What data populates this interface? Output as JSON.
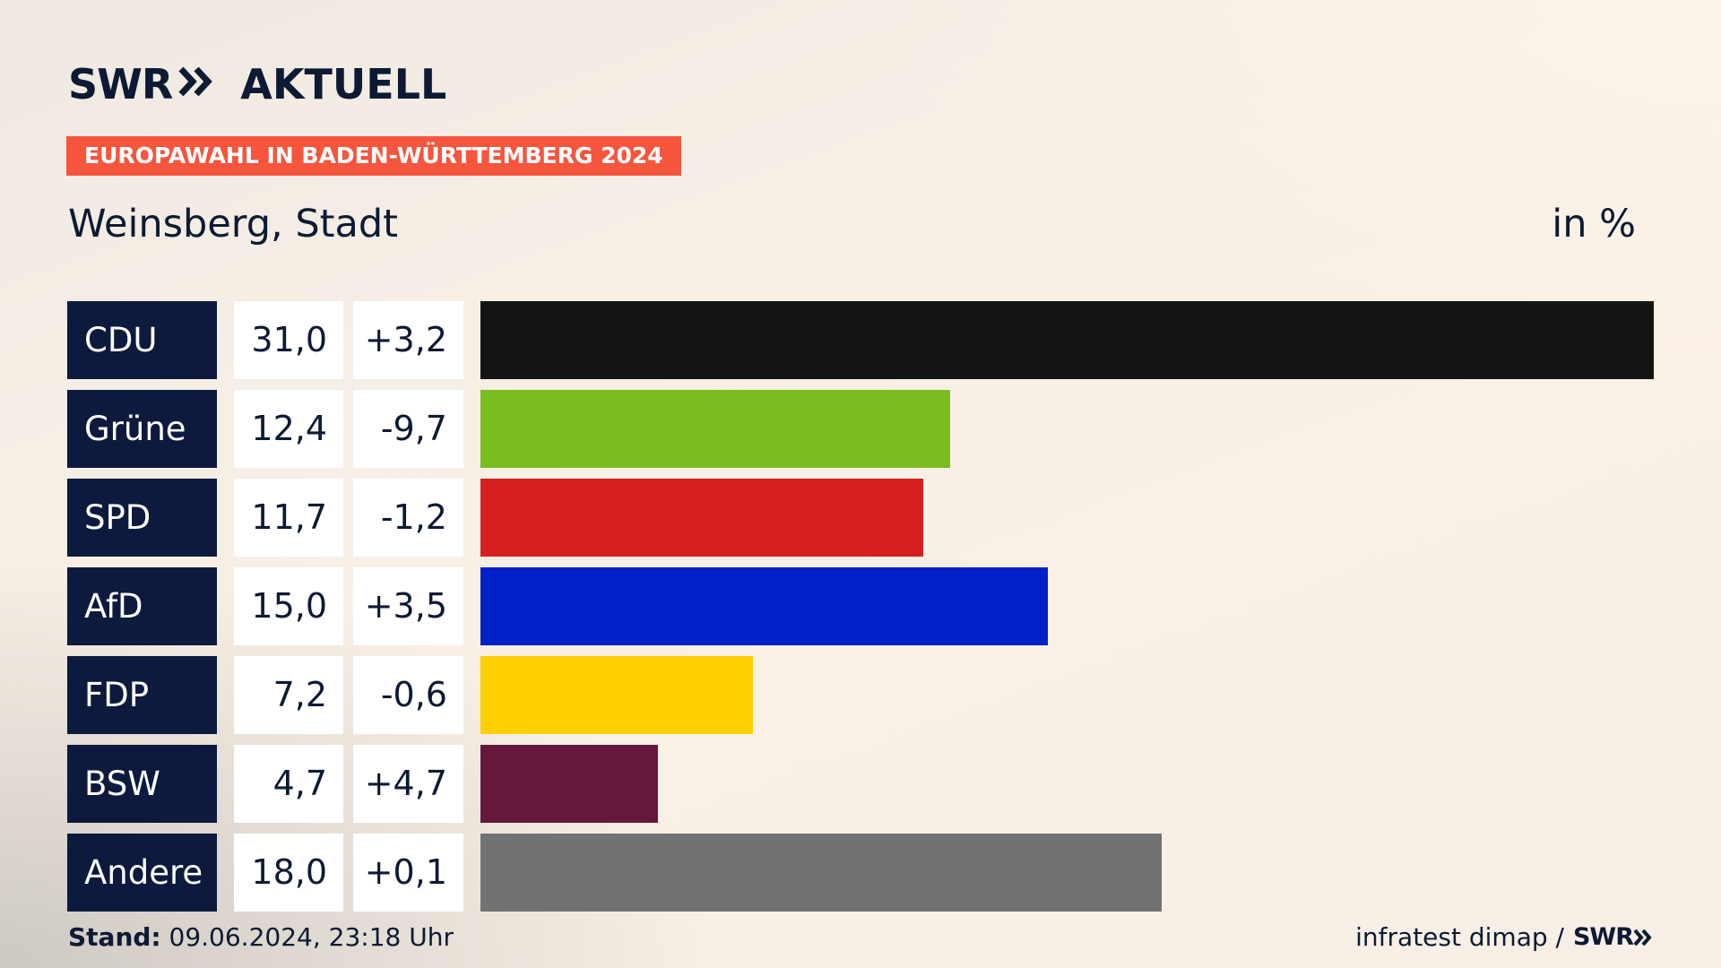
{
  "brand": {
    "logo_swr": "SWR",
    "logo_arrows": "»",
    "logo_aktuell": "AKTUELL"
  },
  "banner": "EUROPAWAHL IN BADEN-WÜRTTEMBERG 2024",
  "region": "Weinsberg, Stadt",
  "unit": "in %",
  "footer": {
    "stand_label": "Stand:",
    "stand_value": " 09.06.2024, 23:18 Uhr",
    "source": "infratest dimap /",
    "source_brand": "SWR",
    "source_arrows": "»"
  },
  "chart_data": {
    "type": "bar",
    "orientation": "horizontal",
    "categories": [
      "CDU",
      "Grüne",
      "SPD",
      "AfD",
      "FDP",
      "BSW",
      "Andere"
    ],
    "values": [
      31.0,
      12.4,
      11.7,
      15.0,
      7.2,
      4.7,
      18.0
    ],
    "value_labels": [
      "31,0",
      "12,4",
      "11,7",
      "15,0",
      "7,2",
      "4,7",
      "18,0"
    ],
    "change_labels": [
      "+3,2",
      "-9,7",
      "-1,2",
      "+3,5",
      "-0,6",
      "+4,7",
      "+0,1"
    ],
    "changes": [
      3.2,
      -9.7,
      -1.2,
      3.5,
      -0.6,
      4.7,
      0.1
    ],
    "colors": [
      "#141414",
      "#7abd1e",
      "#d81f1f",
      "#0020c8",
      "#ffcf00",
      "#66183c",
      "#717274"
    ],
    "xlim": [
      0,
      31.0
    ],
    "grid": false,
    "legend": "none"
  }
}
